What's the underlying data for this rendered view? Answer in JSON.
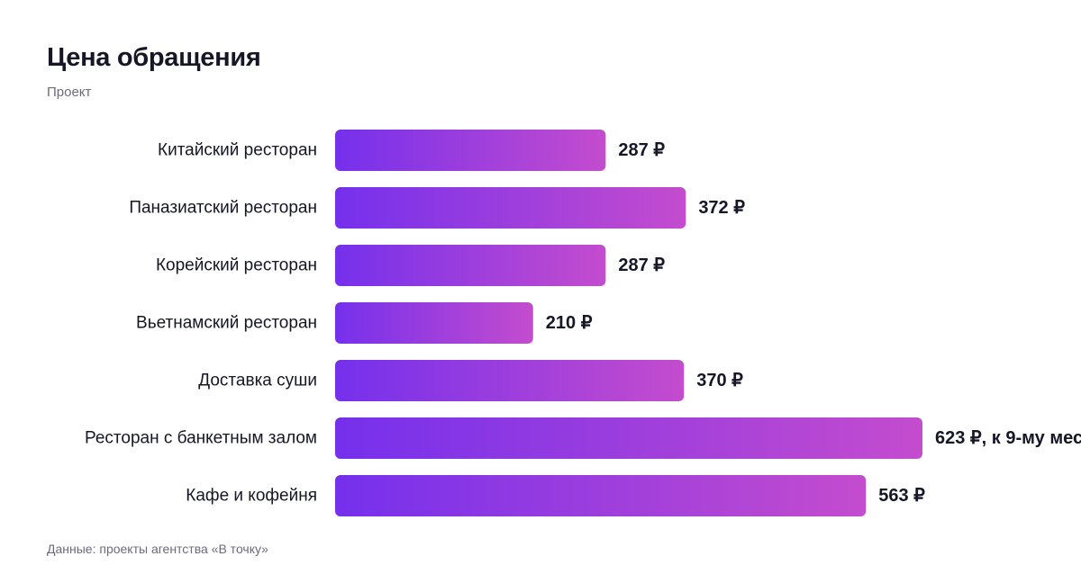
{
  "header": {
    "title": "Цена обращения",
    "subtitle": "Проект"
  },
  "footer": {
    "source": "Данные: проекты агентства «В точку»"
  },
  "colors": {
    "bar_start": "#7530ec",
    "bar_end": "#c44cce",
    "text": "#161626",
    "muted": "#6b6b7b"
  },
  "chart_data": {
    "type": "bar",
    "orientation": "horizontal",
    "categories": [
      "Китайский ресторан",
      "Паназиатский ресторан",
      "Корейский ресторан",
      "Вьетнамский ресторан",
      "Доставка суши",
      "Ресторан с банкетным залом",
      "Кафе и кофейня"
    ],
    "values": [
      287,
      372,
      287,
      210,
      370,
      623,
      563
    ],
    "value_labels": [
      "287 ₽",
      "372 ₽",
      "287 ₽",
      "210 ₽",
      "370 ₽",
      "623 ₽, к 9-му мес",
      "563 ₽"
    ],
    "title": "Цена обращения",
    "subtitle": "Проект",
    "xlim": [
      0,
      650
    ],
    "grid": false,
    "legend": "none"
  }
}
